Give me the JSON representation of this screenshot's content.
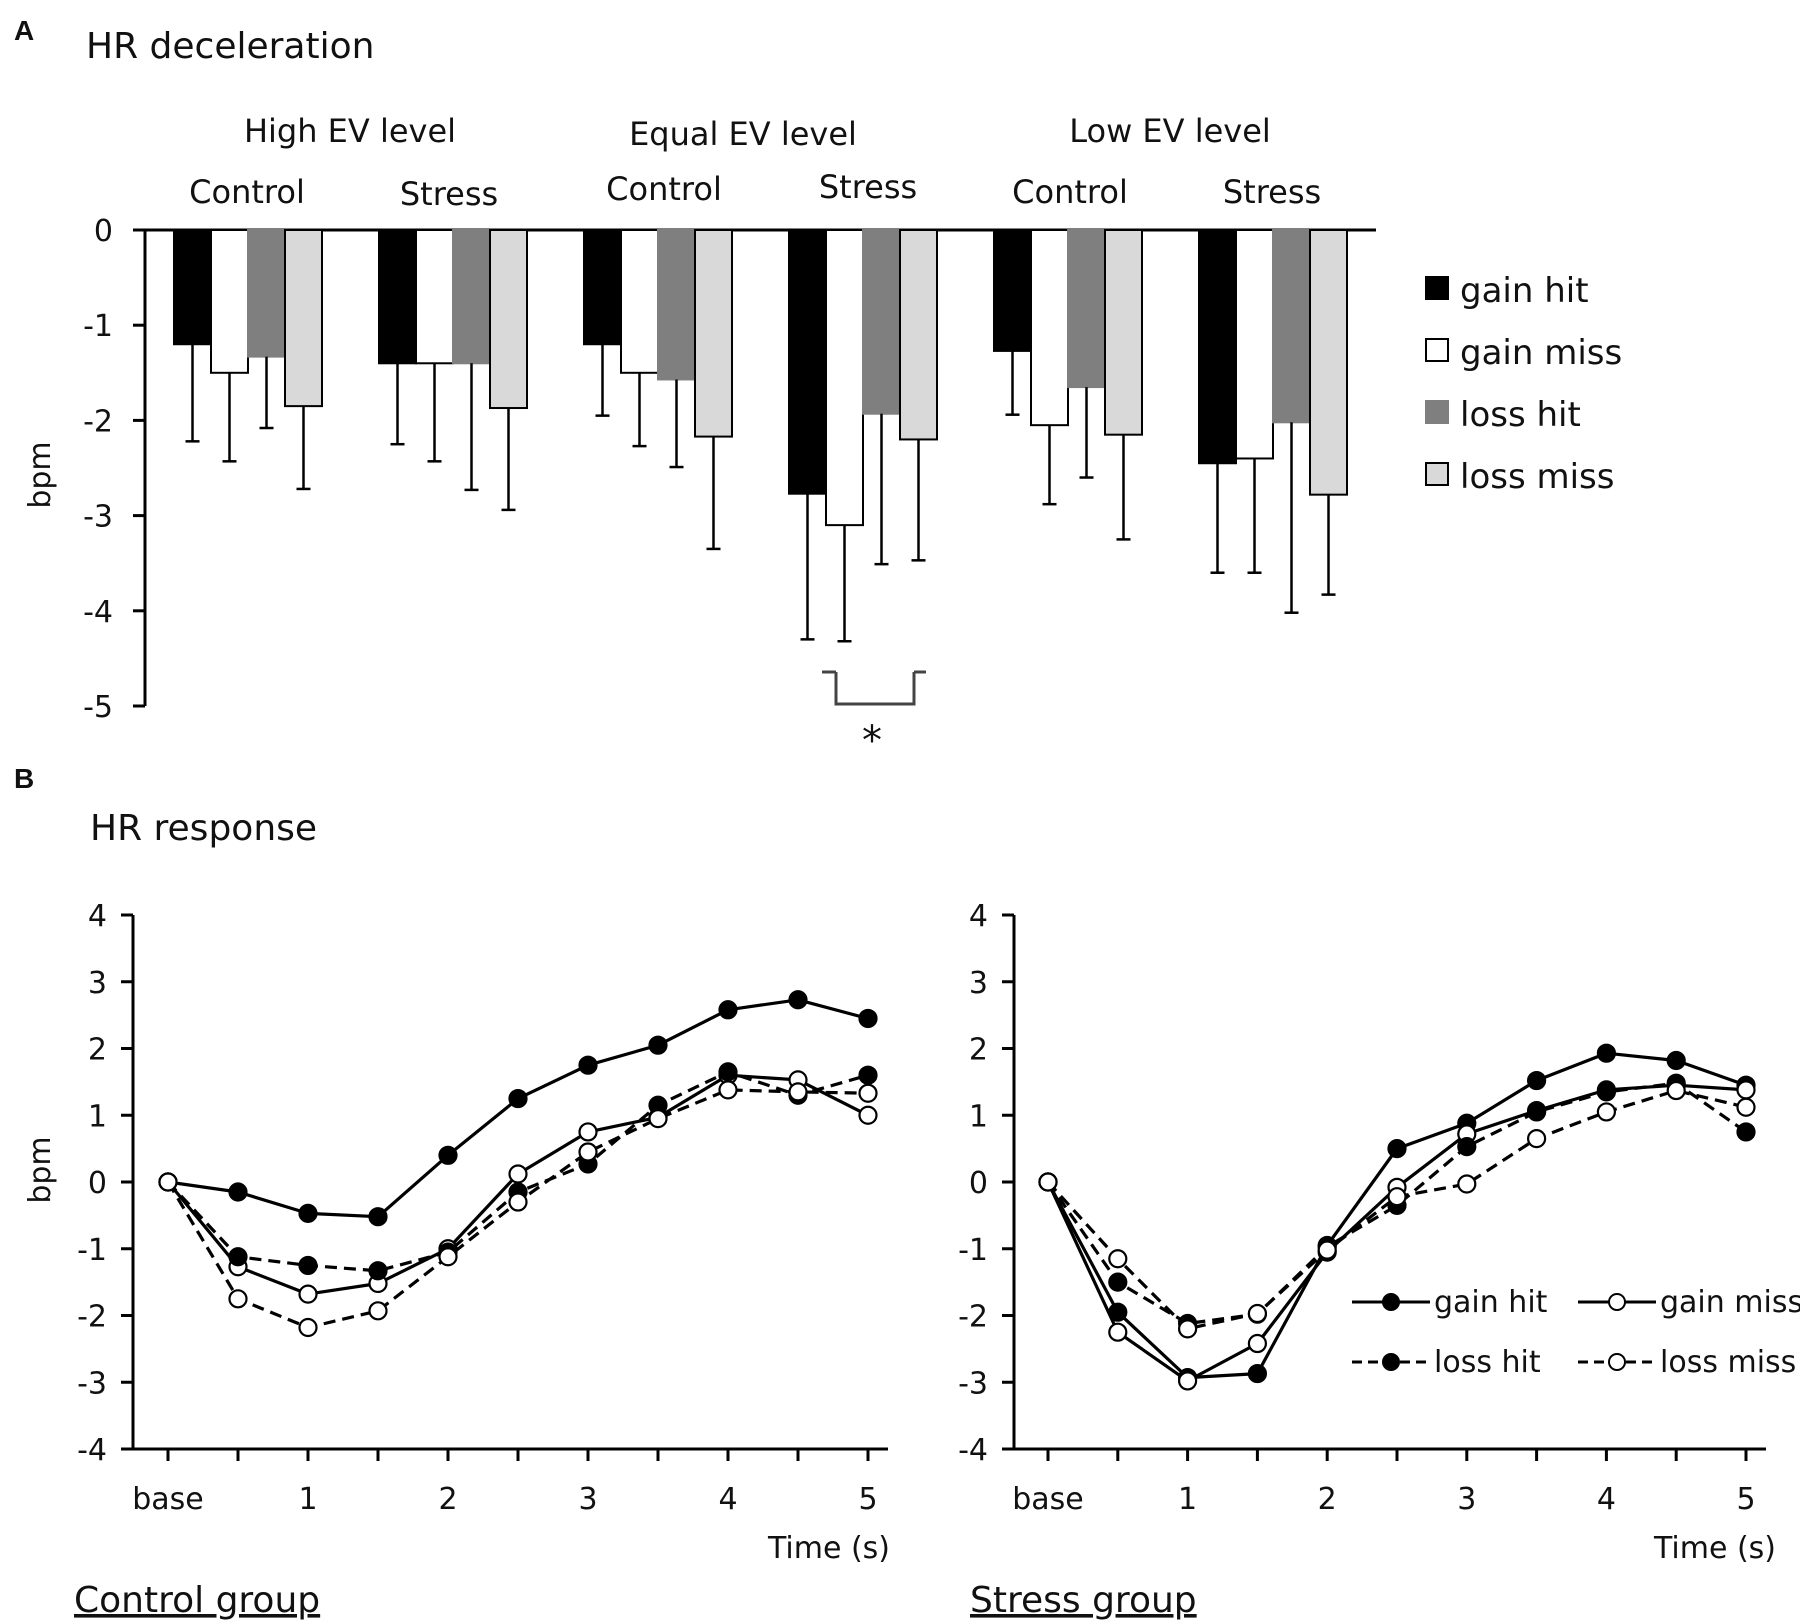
{
  "panels": {
    "a_letter": "A",
    "b_letter": "B"
  },
  "chart_data": [
    {
      "type": "bar",
      "title": "HR deceleration",
      "ylabel": "bpm",
      "ylim": [
        -5,
        0
      ],
      "yticks": [
        "0",
        "-1",
        "-2",
        "-3",
        "-4",
        "-5"
      ],
      "ytick_values": [
        0,
        -1,
        -2,
        -3,
        -4,
        -5
      ],
      "level_headers": [
        "High EV level",
        "Equal EV level",
        "Low EV level"
      ],
      "group_headers": [
        "Control",
        "Stress",
        "Control",
        "Stress",
        "Control",
        "Stress"
      ],
      "series": [
        {
          "name": "gain hit",
          "color": "#000000",
          "values": [
            -1.2,
            -1.4,
            -1.2,
            -2.77,
            -1.27,
            -2.45
          ],
          "error": [
            1.02,
            0.85,
            0.75,
            1.53,
            0.67,
            1.15
          ]
        },
        {
          "name": "gain miss",
          "color": "#ffffff",
          "values": [
            -1.5,
            -1.4,
            -1.5,
            -3.1,
            -2.05,
            -2.4
          ],
          "error": [
            0.93,
            1.03,
            0.77,
            1.22,
            0.83,
            1.2
          ]
        },
        {
          "name": "loss hit",
          "color": "#7f7f7f",
          "values": [
            -1.33,
            -1.4,
            -1.57,
            -1.93,
            -1.65,
            -2.02
          ],
          "error": [
            0.75,
            1.33,
            0.92,
            1.58,
            0.95,
            2.0
          ]
        },
        {
          "name": "loss miss",
          "color": "#d9d9d9",
          "values": [
            -1.85,
            -1.87,
            -2.17,
            -2.2,
            -2.15,
            -2.78
          ],
          "error": [
            0.87,
            1.07,
            1.18,
            1.27,
            1.1,
            1.05
          ]
        }
      ],
      "annotation": "*"
    },
    {
      "type": "line",
      "title": "HR response",
      "subtitle": "Control group",
      "ylabel": "bpm",
      "xlabel": "Time (s)",
      "ylim": [
        -4,
        4
      ],
      "yticks": [
        "4",
        "3",
        "2",
        "1",
        "0",
        "-1",
        "-2",
        "-3",
        "-4"
      ],
      "ytick_values": [
        4,
        3,
        2,
        1,
        0,
        -1,
        -2,
        -3,
        -4
      ],
      "x": [
        0,
        0.5,
        1,
        1.5,
        2,
        2.5,
        3,
        3.5,
        4,
        4.5,
        5
      ],
      "xticks": [
        "base",
        "1",
        "2",
        "3",
        "4",
        "5"
      ],
      "xtick_values": [
        0,
        1,
        2,
        3,
        4,
        5
      ],
      "series": [
        {
          "name": "gain hit",
          "style": "solid",
          "marker": "filled",
          "values": [
            0,
            -0.15,
            -0.47,
            -0.52,
            0.4,
            1.25,
            1.75,
            2.05,
            2.58,
            2.73,
            2.45
          ]
        },
        {
          "name": "gain miss",
          "style": "solid",
          "marker": "open",
          "values": [
            0,
            -1.27,
            -1.68,
            -1.52,
            -1.0,
            0.12,
            0.75,
            0.97,
            1.6,
            1.53,
            1.0
          ]
        },
        {
          "name": "loss hit",
          "style": "dashed",
          "marker": "filled",
          "values": [
            0,
            -1.12,
            -1.25,
            -1.33,
            -1.05,
            -0.15,
            0.27,
            1.15,
            1.65,
            1.3,
            1.6
          ]
        },
        {
          "name": "loss miss",
          "style": "dashed",
          "marker": "open",
          "values": [
            0,
            -1.75,
            -2.18,
            -1.93,
            -1.12,
            -0.3,
            0.45,
            0.95,
            1.38,
            1.35,
            1.33
          ]
        }
      ]
    },
    {
      "type": "line",
      "subtitle": "Stress group",
      "xlabel": "Time (s)",
      "ylim": [
        -4,
        4
      ],
      "yticks": [
        "4",
        "3",
        "2",
        "1",
        "0",
        "-1",
        "-2",
        "-3",
        "-4"
      ],
      "ytick_values": [
        4,
        3,
        2,
        1,
        0,
        -1,
        -2,
        -3,
        -4
      ],
      "x": [
        0,
        0.5,
        1,
        1.5,
        2,
        2.5,
        3,
        3.5,
        4,
        4.5,
        5
      ],
      "xticks": [
        "base",
        "1",
        "2",
        "3",
        "4",
        "5"
      ],
      "xtick_values": [
        0,
        1,
        2,
        3,
        4,
        5
      ],
      "legend": [
        "gain hit",
        "gain miss",
        "loss hit",
        "loss miss"
      ],
      "series": [
        {
          "name": "gain hit",
          "style": "solid",
          "marker": "filled",
          "values": [
            0,
            -1.95,
            -2.93,
            -2.87,
            -0.95,
            0.5,
            0.88,
            1.52,
            1.93,
            1.82,
            1.45
          ]
        },
        {
          "name": "gain miss",
          "style": "solid",
          "marker": "open",
          "values": [
            0,
            -2.25,
            -2.98,
            -2.42,
            -1.05,
            -0.08,
            0.72,
            1.07,
            1.38,
            1.45,
            1.38
          ]
        },
        {
          "name": "loss hit",
          "style": "dashed",
          "marker": "filled",
          "values": [
            0,
            -1.5,
            -2.12,
            -1.98,
            -0.97,
            -0.35,
            0.53,
            1.05,
            1.35,
            1.48,
            0.75
          ]
        },
        {
          "name": "loss miss",
          "style": "dashed",
          "marker": "open",
          "values": [
            0,
            -1.15,
            -2.2,
            -1.97,
            -1.02,
            -0.22,
            -0.03,
            0.65,
            1.05,
            1.37,
            1.12
          ]
        }
      ]
    }
  ]
}
